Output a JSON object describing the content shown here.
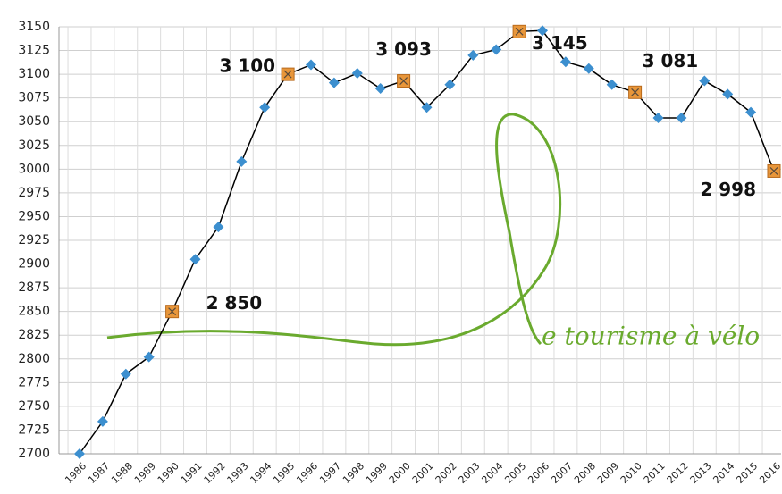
{
  "chart_data": {
    "type": "line",
    "categories": [
      "1986",
      "1987",
      "1988",
      "1989",
      "1990",
      "1991",
      "1992",
      "1993",
      "1994",
      "1995",
      "1996",
      "1997",
      "1998",
      "1999",
      "2000",
      "2001",
      "2002",
      "2003",
      "2004",
      "2005",
      "2006",
      "2007",
      "2008",
      "2009",
      "2010",
      "2011",
      "2012",
      "2013",
      "2014",
      "2015",
      "2016"
    ],
    "series": [
      {
        "color": "#000000",
        "marker_color": "#3c8fcf",
        "highlight_color": "#e8963a",
        "values": [
          2700,
          2734,
          2784,
          2802,
          2850,
          2905,
          2939,
          3008,
          3065,
          3100,
          3110,
          3091,
          3101,
          3085,
          3093,
          3065,
          3089,
          3120,
          3126,
          3145,
          3146,
          3113,
          3106,
          3089,
          3081,
          3054,
          3054,
          3093,
          3079,
          3060,
          2998
        ],
        "value_labels": [
          null,
          null,
          null,
          null,
          "2 850",
          null,
          null,
          null,
          null,
          "3 100",
          null,
          null,
          null,
          null,
          "3 093",
          null,
          null,
          null,
          null,
          "3 145",
          null,
          null,
          null,
          null,
          "3 081",
          null,
          null,
          null,
          null,
          null,
          "2 998"
        ]
      }
    ],
    "ylim": [
      2700,
      3150
    ],
    "yticks": [
      2700,
      2725,
      2750,
      2775,
      2800,
      2825,
      2850,
      2875,
      2900,
      2925,
      2950,
      2975,
      3000,
      3025,
      3050,
      3075,
      3100,
      3125,
      3150
    ],
    "grid": true,
    "logo": "e tourisme à vélo"
  }
}
